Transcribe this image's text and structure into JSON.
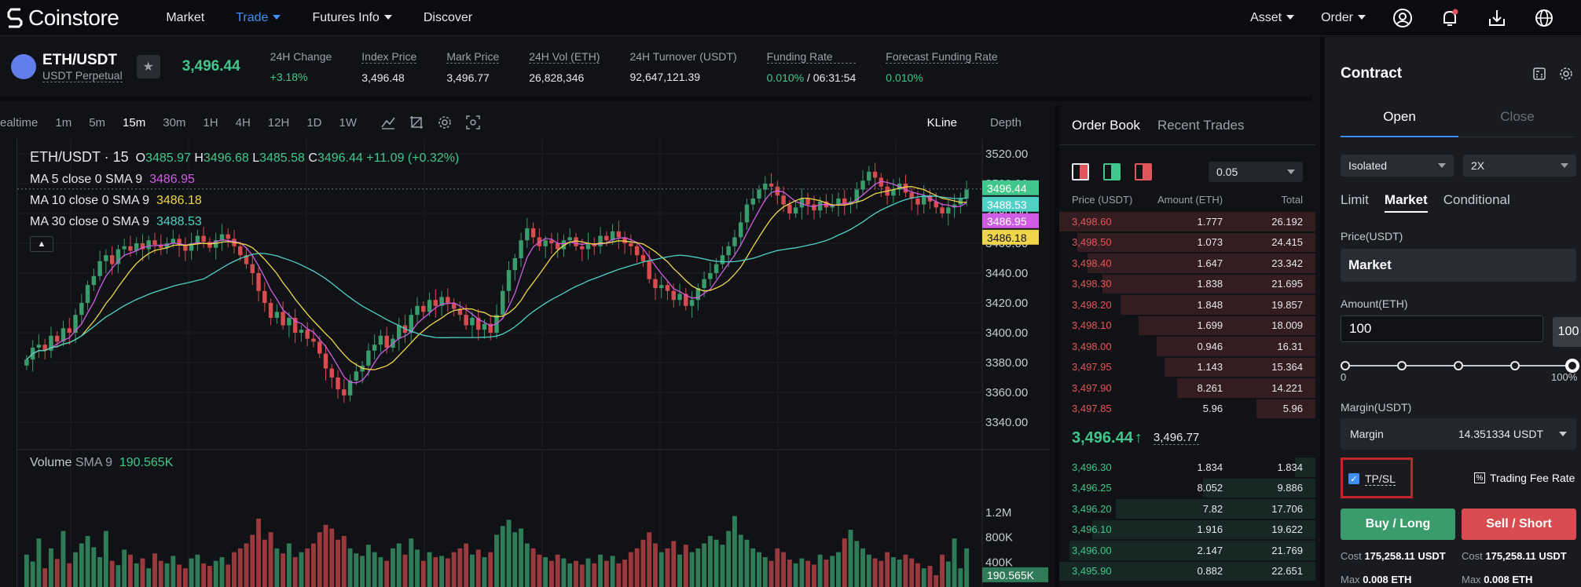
{
  "brand": {
    "name": "Coinstore"
  },
  "nav": {
    "items": [
      {
        "label": "Market"
      },
      {
        "label": "Trade"
      },
      {
        "label": "Futures Info"
      },
      {
        "label": "Discover"
      }
    ],
    "asset": "Asset",
    "order": "Order"
  },
  "ticker": {
    "pair": "ETH/USDT",
    "sub": "USDT Perpetual",
    "last": "3,496.44",
    "stats": [
      {
        "label": "24H Change",
        "value": "+3.18%"
      },
      {
        "label": "Index Price",
        "value": "3,496.48"
      },
      {
        "label": "Mark Price",
        "value": "3,496.77"
      },
      {
        "label": "24H Vol (ETH)",
        "value": "26,828,346"
      },
      {
        "label": "24H Turnover (USDT)",
        "value": "92,647,121.39"
      },
      {
        "label": "Funding Rate",
        "value": "0.010%",
        "value2": "/ 06:31:54"
      },
      {
        "label": "Forecast Funding Rate",
        "value": "0.010%"
      }
    ]
  },
  "chart_toolbar": {
    "timeframes": [
      "ealtime",
      "1m",
      "5m",
      "15m",
      "30m",
      "1H",
      "4H",
      "12H",
      "1D",
      "1W"
    ],
    "active": "15m",
    "views": [
      "KLine",
      "Depth"
    ]
  },
  "chart_data": {
    "type": "candlestick",
    "legend_title": "ETH/USDT · 15",
    "ohlc": {
      "o_label": "O",
      "o": "3485.97",
      "h_label": "H",
      "h": "3496.68",
      "l_label": "L",
      "l": "3485.58",
      "c_label": "C",
      "c": "3496.44",
      "chg": "+11.09 (+0.32%)"
    },
    "ma": [
      {
        "label": "MA 5 close 0 SMA 9",
        "value": "3486.95",
        "color": "#d05ce3"
      },
      {
        "label": "MA 10 close 0 SMA 9",
        "value": "3486.18",
        "color": "#f1d54a"
      },
      {
        "label": "MA 30 close 0 SMA 9",
        "value": "3488.53",
        "color": "#4fd1c5"
      }
    ],
    "ylim": [
      3330,
      3530
    ],
    "y_ticks": [
      "3520.00",
      "3500.00",
      "3480.00",
      "3460.00",
      "3440.00",
      "3420.00",
      "3400.00",
      "3380.00",
      "3360.00",
      "3340.00"
    ],
    "price_tags": [
      {
        "value": "3496.44",
        "color": "#41c78b"
      },
      {
        "value": "3488.53",
        "color": "#4fd1c5"
      },
      {
        "value": "3486.95",
        "color": "#d05ce3"
      },
      {
        "value": "3486.18",
        "color": "#f1d54a"
      }
    ],
    "volume": {
      "label": "Volume",
      "sma": "SMA 9",
      "sma_value": "190.565K",
      "y_ticks": [
        "1.2M",
        "800K",
        "400K"
      ],
      "last_tag": "190.565K"
    },
    "closes": [
      3382,
      3390,
      3392,
      3388,
      3398,
      3394,
      3403,
      3400,
      3412,
      3420,
      3432,
      3438,
      3448,
      3452,
      3446,
      3456,
      3458,
      3455,
      3460,
      3456,
      3462,
      3459,
      3457,
      3460,
      3463,
      3459,
      3455,
      3460,
      3465,
      3461,
      3457,
      3462,
      3466,
      3463,
      3458,
      3452,
      3446,
      3440,
      3428,
      3420,
      3410,
      3414,
      3405,
      3410,
      3400,
      3402,
      3396,
      3394,
      3386,
      3376,
      3370,
      3362,
      3358,
      3368,
      3374,
      3378,
      3388,
      3392,
      3398,
      3390,
      3396,
      3405,
      3400,
      3412,
      3418,
      3414,
      3422,
      3418,
      3424,
      3420,
      3416,
      3412,
      3405,
      3410,
      3402,
      3406,
      3400,
      3412,
      3428,
      3442,
      3450,
      3462,
      3470,
      3464,
      3458,
      3462,
      3460,
      3456,
      3462,
      3464,
      3458,
      3456,
      3460,
      3458,
      3465,
      3462,
      3468,
      3464,
      3460,
      3458,
      3452,
      3448,
      3436,
      3430,
      3432,
      3428,
      3422,
      3426,
      3418,
      3422,
      3430,
      3436,
      3440,
      3446,
      3452,
      3458,
      3464,
      3474,
      3486,
      3490,
      3496,
      3500,
      3498,
      3492,
      3486,
      3480,
      3484,
      3490,
      3486,
      3482,
      3488,
      3484,
      3486,
      3490,
      3486,
      3488,
      3496,
      3502,
      3508,
      3504,
      3498,
      3492,
      3496,
      3500,
      3494,
      3490,
      3486,
      3492,
      3488,
      3484,
      3480,
      3484,
      3486,
      3490,
      3496
    ],
    "volumes": [
      520,
      410,
      780,
      300,
      620,
      450,
      900,
      380,
      560,
      700,
      820,
      640,
      480,
      900,
      420,
      350,
      600,
      520,
      380,
      460,
      300,
      540,
      420,
      380,
      500,
      360,
      300,
      460,
      520,
      380,
      340,
      420,
      480,
      360,
      560,
      620,
      700,
      840,
      1100,
      760,
      880,
      620,
      540,
      700,
      480,
      560,
      620,
      700,
      880,
      1000,
      940,
      760,
      820,
      620,
      540,
      500,
      680,
      560,
      480,
      420,
      620,
      700,
      520,
      780,
      600,
      420,
      560,
      480,
      500,
      460,
      560,
      620,
      700,
      520,
      600,
      480,
      560,
      840,
      980,
      1080,
      880,
      940,
      700,
      620,
      520,
      480,
      420,
      520,
      460,
      380,
      420,
      360,
      460,
      380,
      520,
      420,
      500,
      380,
      440,
      560,
      620,
      760,
      880,
      700,
      560,
      620,
      740,
      520,
      680,
      560,
      620,
      700,
      820,
      760,
      680,
      900,
      1140,
      840,
      760,
      620,
      560,
      480,
      420,
      620,
      560,
      440,
      380,
      460,
      420,
      360,
      520,
      440,
      500,
      560,
      780,
      920,
      740,
      620,
      520,
      460,
      420,
      560,
      480,
      440,
      520,
      460,
      380,
      300,
      340,
      190
    ]
  },
  "orderbook": {
    "tabs": [
      "Order Book",
      "Recent Trades"
    ],
    "precision": "0.05",
    "headers": [
      "Price (USDT)",
      "Amount (ETH)",
      "Total"
    ],
    "asks": [
      {
        "price": "3,498.60",
        "amount": "1.777",
        "total": "26.192",
        "depth": 1.0
      },
      {
        "price": "3,498.50",
        "amount": "1.073",
        "total": "24.415",
        "depth": 0.93
      },
      {
        "price": "3,498.40",
        "amount": "1.647",
        "total": "23.342",
        "depth": 0.89
      },
      {
        "price": "3,498.30",
        "amount": "1.838",
        "total": "21.695",
        "depth": 0.83
      },
      {
        "price": "3,498.20",
        "amount": "1.848",
        "total": "19.857",
        "depth": 0.76
      },
      {
        "price": "3,498.10",
        "amount": "1.699",
        "total": "18.009",
        "depth": 0.69
      },
      {
        "price": "3,498.00",
        "amount": "0.946",
        "total": "16.31",
        "depth": 0.62
      },
      {
        "price": "3,497.95",
        "amount": "1.143",
        "total": "15.364",
        "depth": 0.59
      },
      {
        "price": "3,497.90",
        "amount": "8.261",
        "total": "14.221",
        "depth": 0.54
      },
      {
        "price": "3,497.85",
        "amount": "5.96",
        "total": "5.96",
        "depth": 0.23
      }
    ],
    "last": "3,496.44",
    "mark": "3,496.77",
    "bids": [
      {
        "price": "3,496.30",
        "amount": "1.834",
        "total": "1.834",
        "depth": 0.08
      },
      {
        "price": "3,496.25",
        "amount": "8.052",
        "total": "9.886",
        "depth": 0.44
      },
      {
        "price": "3,496.20",
        "amount": "7.82",
        "total": "17.706",
        "depth": 0.78
      },
      {
        "price": "3,496.10",
        "amount": "1.916",
        "total": "19.622",
        "depth": 0.87
      },
      {
        "price": "3,496.00",
        "amount": "2.147",
        "total": "21.769",
        "depth": 0.96
      },
      {
        "price": "3,495.90",
        "amount": "0.882",
        "total": "22.651",
        "depth": 1.0
      }
    ]
  },
  "contract": {
    "title": "Contract",
    "tabs": [
      "Open",
      "Close"
    ],
    "margin_mode": "Isolated",
    "leverage": "2X",
    "order_types": [
      "Limit",
      "Market",
      "Conditional"
    ],
    "price_label": "Price(USDT)",
    "price_value": "Market",
    "amount_label": "Amount(ETH)",
    "amount_value": "100",
    "amount_tip": "100",
    "slider_min": "0",
    "slider_max": "100%",
    "margin_label": "Margin(USDT)",
    "margin_text": "Margin",
    "margin_value": "14.351334 USDT",
    "tpsl": "TP/SL",
    "fee_label": "Trading Fee Rate",
    "buy_label": "Buy / Long",
    "sell_label": "Sell / Short",
    "cost_label": "Cost",
    "buy_cost": "175,258.11 USDT",
    "sell_cost": "175,258.11 USDT",
    "max_label": "Max",
    "buy_max": "0.008 ETH",
    "sell_max": "0.008 ETH",
    "colors": {
      "buy": "#3a9b6b",
      "sell": "#d84c50",
      "accent": "#3f8ff5"
    }
  }
}
